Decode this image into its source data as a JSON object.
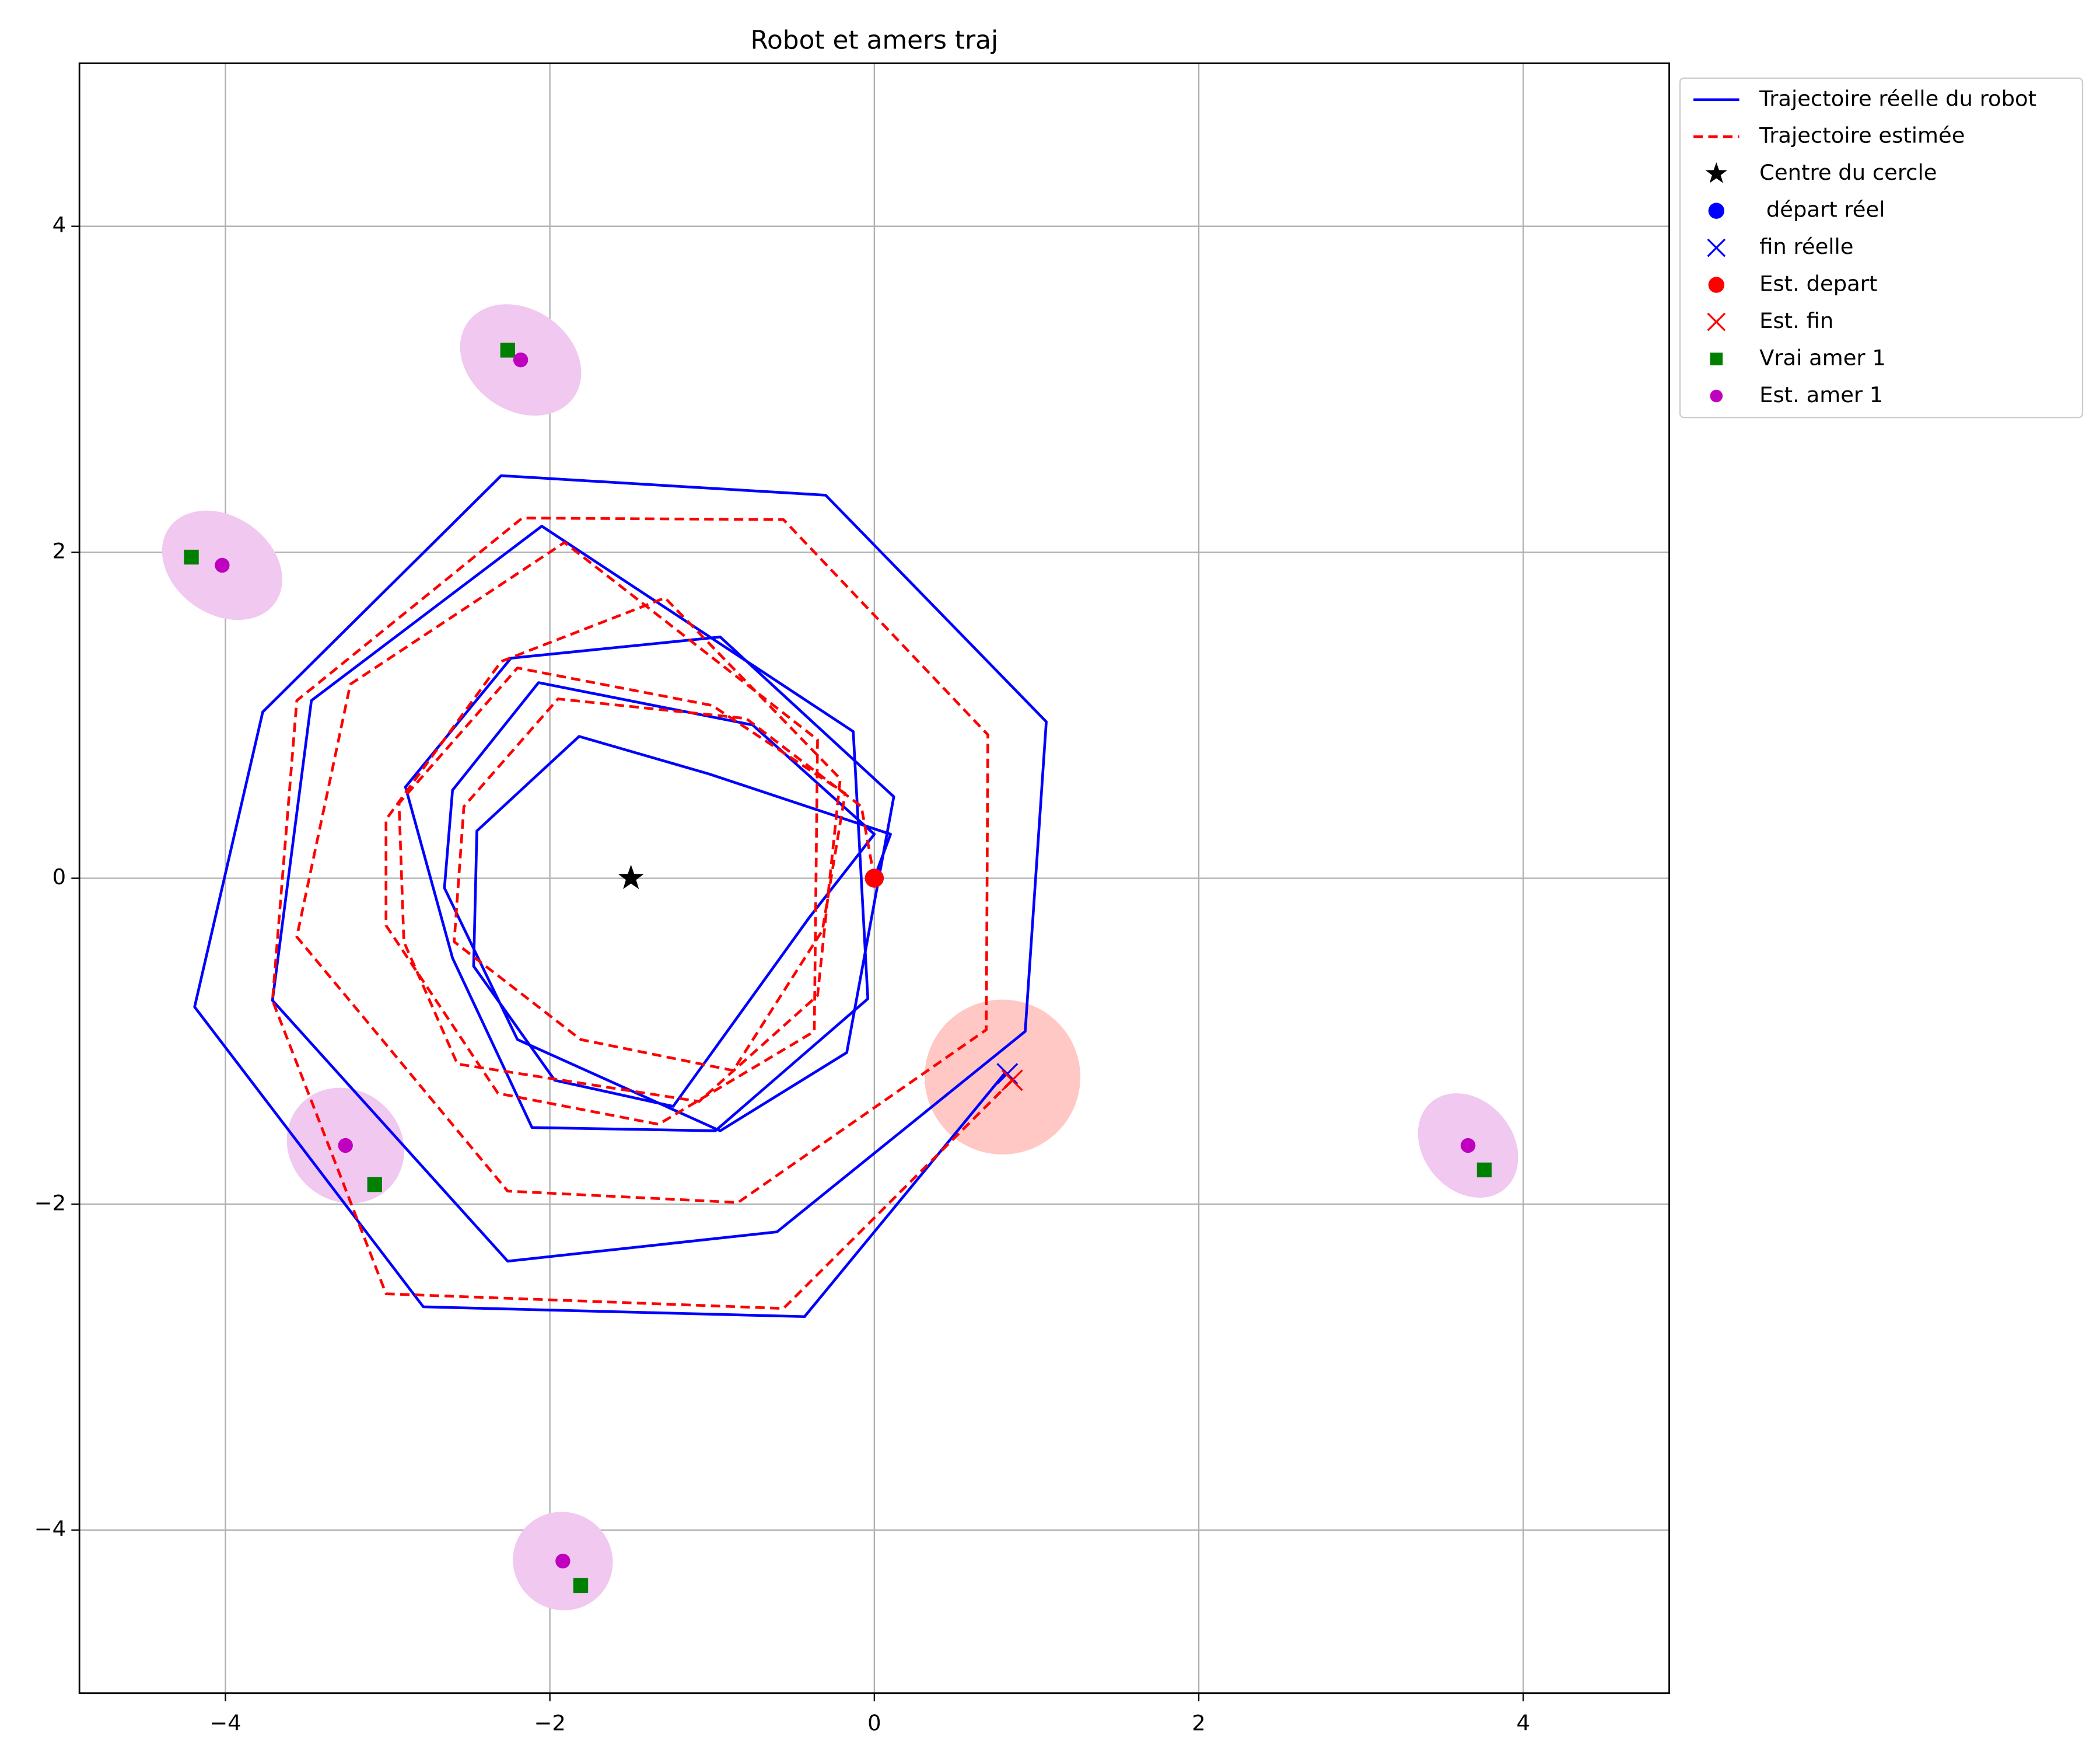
{
  "chart_data": {
    "type": "trajectory",
    "title": "Robot et amers traj",
    "xlim": [
      -4.9,
      4.9
    ],
    "ylim": [
      -5,
      5
    ],
    "xticks": [
      {
        "value": -4,
        "label": "−4"
      },
      {
        "value": -2,
        "label": "−2"
      },
      0,
      2,
      4
    ],
    "yticks": [
      {
        "value": -4,
        "label": "−4"
      },
      {
        "value": -2,
        "label": "−2"
      },
      0,
      2,
      4
    ],
    "grid": true,
    "legend": "outside-upper-right",
    "series": [
      {
        "name": "Trajectoire réelle du robot",
        "color": "#0000ff",
        "style": "solid",
        "x": [
          0,
          0.1,
          -1.02,
          -1.82,
          -2.45,
          -2.47,
          -1.97,
          -1.24,
          -0.4,
          0,
          -0.75,
          -2.07,
          -2.6,
          -2.65,
          -2.2,
          -0.95,
          -0.17,
          0.12,
          -0.95,
          -2.24,
          -2.89,
          -2.6,
          -2.11,
          -0.98,
          -0.04,
          -0.13,
          -2.05,
          -3.47,
          -3.71,
          -2.26,
          -0.6,
          0.93,
          1.06,
          -0.3,
          -2.3,
          -3.77,
          -4.19,
          -2.78,
          -0.43,
          0.81
        ],
        "y": [
          0,
          0.27,
          0.64,
          0.87,
          0.29,
          -0.54,
          -1.24,
          -1.4,
          -0.24,
          0.27,
          0.94,
          1.2,
          0.54,
          -0.06,
          -0.99,
          -1.55,
          -1.07,
          0.5,
          1.48,
          1.35,
          0.56,
          -0.49,
          -1.53,
          -1.55,
          -0.74,
          0.9,
          2.16,
          1.09,
          -0.75,
          -2.35,
          -2.17,
          -0.94,
          0.96,
          2.35,
          2.47,
          1.02,
          -0.79,
          -2.63,
          -2.69,
          -1.19
        ]
      },
      {
        "name": "Trajectoire estimée",
        "color": "#ff0000",
        "style": "dashed",
        "x": [
          0,
          -0.08,
          -0.79,
          -1.95,
          -2.53,
          -2.59,
          -1.81,
          -0.87,
          -0.32,
          -0.18,
          -1.0,
          -2.2,
          -2.93,
          -2.9,
          -2.57,
          -1.08,
          -0.35,
          -0.21,
          -1.29,
          -2.3,
          -3.01,
          -3.01,
          -2.32,
          -1.33,
          -0.37,
          -0.35,
          -1.91,
          -3.23,
          -3.56,
          -2.26,
          -0.84,
          0.69,
          0.7,
          -0.56,
          -2.17,
          -3.56,
          -3.71,
          -3.01,
          -0.56,
          0.85
        ],
        "y": [
          0,
          0.44,
          0.98,
          1.1,
          0.44,
          -0.39,
          -0.99,
          -1.18,
          -0.32,
          0.52,
          1.06,
          1.29,
          0.46,
          -0.39,
          -1.14,
          -1.37,
          -0.72,
          0.61,
          1.72,
          1.33,
          0.36,
          -0.29,
          -1.32,
          -1.51,
          -0.94,
          0.85,
          2.06,
          1.19,
          -0.36,
          -1.92,
          -1.99,
          -0.93,
          0.88,
          2.2,
          2.21,
          1.09,
          -0.75,
          -2.55,
          -2.64,
          -1.24
        ]
      }
    ],
    "points": [
      {
        "name": "Centre du cercle",
        "marker": "star",
        "color": "#000000",
        "x": -1.5,
        "y": 0
      },
      {
        "name": " départ réel",
        "marker": "circle",
        "color": "#0000ff",
        "x": 0,
        "y": 0
      },
      {
        "name": "fin réelle",
        "marker": "x",
        "color": "#0000ff",
        "x": 0.82,
        "y": -1.2
      },
      {
        "name": "Est. depart",
        "marker": "circle",
        "color": "#ff0000",
        "x": 0,
        "y": 0
      },
      {
        "name": "Est. fin",
        "marker": "x",
        "color": "#ff0000",
        "x": 0.85,
        "y": -1.24
      }
    ],
    "landmarks": [
      {
        "name": "Vrai amer 1",
        "marker": "square",
        "color": "#008000",
        "x": [
          -2.26,
          -4.21,
          -3.08,
          -1.81,
          3.76
        ],
        "y": [
          3.24,
          1.97,
          -1.88,
          -4.34,
          -1.79
        ]
      },
      {
        "name": "Est. amer 1",
        "marker": "dot",
        "color": "#bf00bf",
        "x": [
          -2.18,
          -4.02,
          -3.26,
          -1.92,
          3.66
        ],
        "y": [
          3.18,
          1.92,
          -1.64,
          -4.19,
          -1.64
        ]
      }
    ],
    "ellipses": [
      {
        "x": -2.18,
        "y": 3.18,
        "width": 0.8,
        "height": 0.62,
        "angle": -35,
        "color": "#f0c8f0"
      },
      {
        "x": -4.02,
        "y": 1.92,
        "width": 0.8,
        "height": 0.6,
        "angle": -35,
        "color": "#f0c8f0"
      },
      {
        "x": -3.26,
        "y": -1.64,
        "width": 0.75,
        "height": 0.68,
        "angle": -40,
        "color": "#f0c8f0"
      },
      {
        "x": -1.92,
        "y": -4.19,
        "width": 0.62,
        "height": 0.6,
        "angle": -30,
        "color": "#f0c8f0"
      },
      {
        "x": 3.66,
        "y": -1.64,
        "width": 0.7,
        "height": 0.55,
        "angle": -50,
        "color": "#f0c8f0"
      },
      {
        "x": 0.79,
        "y": -1.22,
        "width": 0.96,
        "height": 0.95,
        "angle": 0,
        "color": "#ffc8c4"
      }
    ]
  }
}
